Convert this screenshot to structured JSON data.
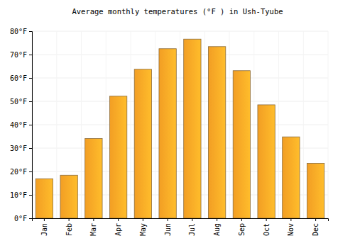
{
  "chart_data": {
    "type": "bar",
    "title": "Average monthly temperatures (°F ) in Ush-Tyube",
    "categories": [
      "Jan",
      "Feb",
      "Mar",
      "Apr",
      "May",
      "Jun",
      "Jul",
      "Aug",
      "Sep",
      "Oct",
      "Nov",
      "Dec"
    ],
    "values": [
      16.9,
      18.4,
      34.1,
      52.2,
      63.7,
      72.5,
      76.6,
      73.4,
      63.1,
      48.5,
      34.8,
      23.5
    ],
    "color": "#ffa726",
    "ylim": [
      0,
      80
    ],
    "yticks": [
      {
        "value": 0,
        "label": "0°F"
      },
      {
        "value": 10,
        "label": "10°F"
      },
      {
        "value": 20,
        "label": "20°F"
      },
      {
        "value": 30,
        "label": "30°F"
      },
      {
        "value": 40,
        "label": "40°F"
      },
      {
        "value": 50,
        "label": "50°F"
      },
      {
        "value": 60,
        "label": "60°F"
      },
      {
        "value": 70,
        "label": "70°F"
      },
      {
        "value": 80,
        "label": "80°F"
      }
    ],
    "grid": true
  }
}
